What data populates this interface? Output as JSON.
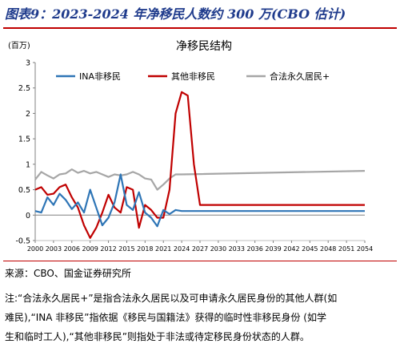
{
  "figure": {
    "title": "图表9：2023-2024 年净移民人数约 300 万(CBO 估计)",
    "source": "来源：CBO、国金证券研究所",
    "note_lines": [
      "注:“合法永久居民+”是指合法永久居民以及可申请永久居民身份的其他人群(如",
      "难民),“INA 非移民”指依据《移民与国籍法》获得的临时性非移民身份 (如学",
      "生和临时工人),“其他非移民”则指处于非法或待定移民身份状态的人群。"
    ]
  },
  "chart_data": {
    "type": "line",
    "title": "净移民结构",
    "unit_label": "(百万)",
    "xlabel": "",
    "ylabel": "",
    "xlim": [
      2000,
      2054
    ],
    "ylim": [
      -0.5,
      3.0
    ],
    "x_ticks": [
      2000,
      2003,
      2006,
      2009,
      2012,
      2015,
      2018,
      2021,
      2024,
      2027,
      2030,
      2033,
      2036,
      2039,
      2042,
      2045,
      2048,
      2051,
      2054
    ],
    "y_ticks": [
      -0.5,
      0,
      0.5,
      1,
      1.5,
      2,
      2.5,
      3
    ],
    "y_tick_labels": [
      "-0.5",
      "0",
      "0.5",
      "1",
      "1.5",
      "2",
      "2.5",
      "3"
    ],
    "grid": false,
    "legend_position": "top",
    "series": [
      {
        "name": "INA非移民",
        "color": "#2e75b6",
        "points": [
          [
            2000,
            0.08
          ],
          [
            2001,
            0.05
          ],
          [
            2002,
            0.35
          ],
          [
            2003,
            0.2
          ],
          [
            2004,
            0.42
          ],
          [
            2005,
            0.3
          ],
          [
            2006,
            0.12
          ],
          [
            2007,
            0.25
          ],
          [
            2008,
            0.05
          ],
          [
            2009,
            0.5
          ],
          [
            2010,
            0.15
          ],
          [
            2011,
            -0.2
          ],
          [
            2012,
            -0.05
          ],
          [
            2013,
            0.25
          ],
          [
            2014,
            0.8
          ],
          [
            2015,
            0.2
          ],
          [
            2016,
            0.1
          ],
          [
            2017,
            0.45
          ],
          [
            2018,
            0.05
          ],
          [
            2019,
            -0.05
          ],
          [
            2020,
            -0.22
          ],
          [
            2021,
            0.1
          ],
          [
            2022,
            0.02
          ],
          [
            2023,
            0.1
          ],
          [
            2024,
            0.08
          ],
          [
            2027,
            0.08
          ],
          [
            2054,
            0.08
          ]
        ]
      },
      {
        "name": "其他非移民",
        "color": "#c00000",
        "points": [
          [
            2000,
            0.5
          ],
          [
            2001,
            0.55
          ],
          [
            2002,
            0.4
          ],
          [
            2003,
            0.42
          ],
          [
            2004,
            0.55
          ],
          [
            2005,
            0.6
          ],
          [
            2006,
            0.35
          ],
          [
            2007,
            0.15
          ],
          [
            2008,
            -0.2
          ],
          [
            2009,
            -0.45
          ],
          [
            2010,
            -0.25
          ],
          [
            2011,
            0.05
          ],
          [
            2012,
            0.4
          ],
          [
            2013,
            0.15
          ],
          [
            2014,
            0.05
          ],
          [
            2015,
            0.55
          ],
          [
            2016,
            0.5
          ],
          [
            2017,
            -0.25
          ],
          [
            2018,
            0.2
          ],
          [
            2019,
            0.1
          ],
          [
            2020,
            -0.05
          ],
          [
            2021,
            -0.05
          ],
          [
            2022,
            0.5
          ],
          [
            2023,
            2.0
          ],
          [
            2024,
            2.42
          ],
          [
            2025,
            2.35
          ],
          [
            2026,
            1.0
          ],
          [
            2027,
            0.2
          ],
          [
            2054,
            0.2
          ]
        ]
      },
      {
        "name": "合法永久居民+",
        "color": "#a6a6a6",
        "points": [
          [
            2000,
            0.7
          ],
          [
            2001,
            0.85
          ],
          [
            2002,
            0.78
          ],
          [
            2003,
            0.72
          ],
          [
            2004,
            0.8
          ],
          [
            2005,
            0.82
          ],
          [
            2006,
            0.9
          ],
          [
            2007,
            0.83
          ],
          [
            2008,
            0.87
          ],
          [
            2009,
            0.82
          ],
          [
            2010,
            0.85
          ],
          [
            2011,
            0.8
          ],
          [
            2012,
            0.75
          ],
          [
            2013,
            0.8
          ],
          [
            2014,
            0.78
          ],
          [
            2015,
            0.8
          ],
          [
            2016,
            0.85
          ],
          [
            2017,
            0.8
          ],
          [
            2018,
            0.72
          ],
          [
            2019,
            0.7
          ],
          [
            2020,
            0.5
          ],
          [
            2021,
            0.6
          ],
          [
            2022,
            0.72
          ],
          [
            2023,
            0.8
          ],
          [
            2024,
            0.8
          ],
          [
            2054,
            0.87
          ]
        ]
      }
    ]
  }
}
